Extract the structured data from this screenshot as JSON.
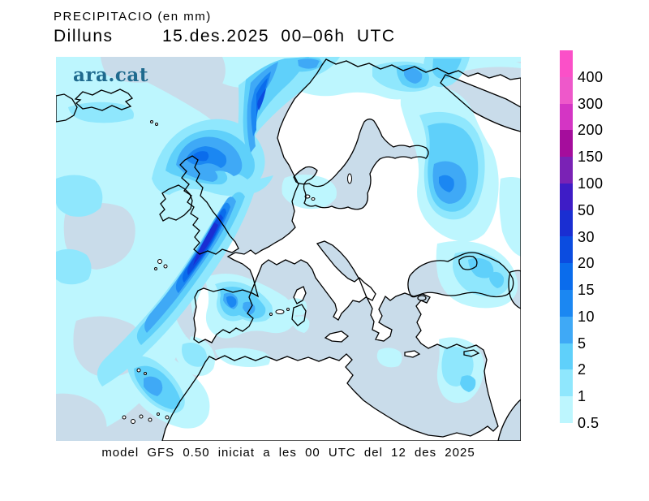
{
  "header": {
    "title": "PRECIPITACIO (en mm)",
    "day": "Dilluns",
    "datetime": "15.des.2025 00–06h UTC"
  },
  "watermark": {
    "text": "ara.cat",
    "color": "#1F6A8E"
  },
  "footer": {
    "caption": "model GFS 0.50 iniciat a les 00 UTC del 12 des 2025"
  },
  "legend": {
    "unit": "mm",
    "values": [
      "400",
      "300",
      "200",
      "150",
      "100",
      "50",
      "30",
      "20",
      "15",
      "10",
      "5",
      "2",
      "1",
      "0.5"
    ],
    "colors": [
      "#FB50C8",
      "#EE58CA",
      "#D435C4",
      "#A50D9C",
      "#7A22B5",
      "#3E1CC6",
      "#1A2ED2",
      "#0B4CE0",
      "#0A6CEC",
      "#1B87F2",
      "#3FA9F6",
      "#5FD0FA",
      "#8FE7FD",
      "#BDF6FE"
    ]
  },
  "map": {
    "sea_color": "#C9DCEA",
    "land_color": "#FFFFFF",
    "coast_color": "#000000"
  }
}
